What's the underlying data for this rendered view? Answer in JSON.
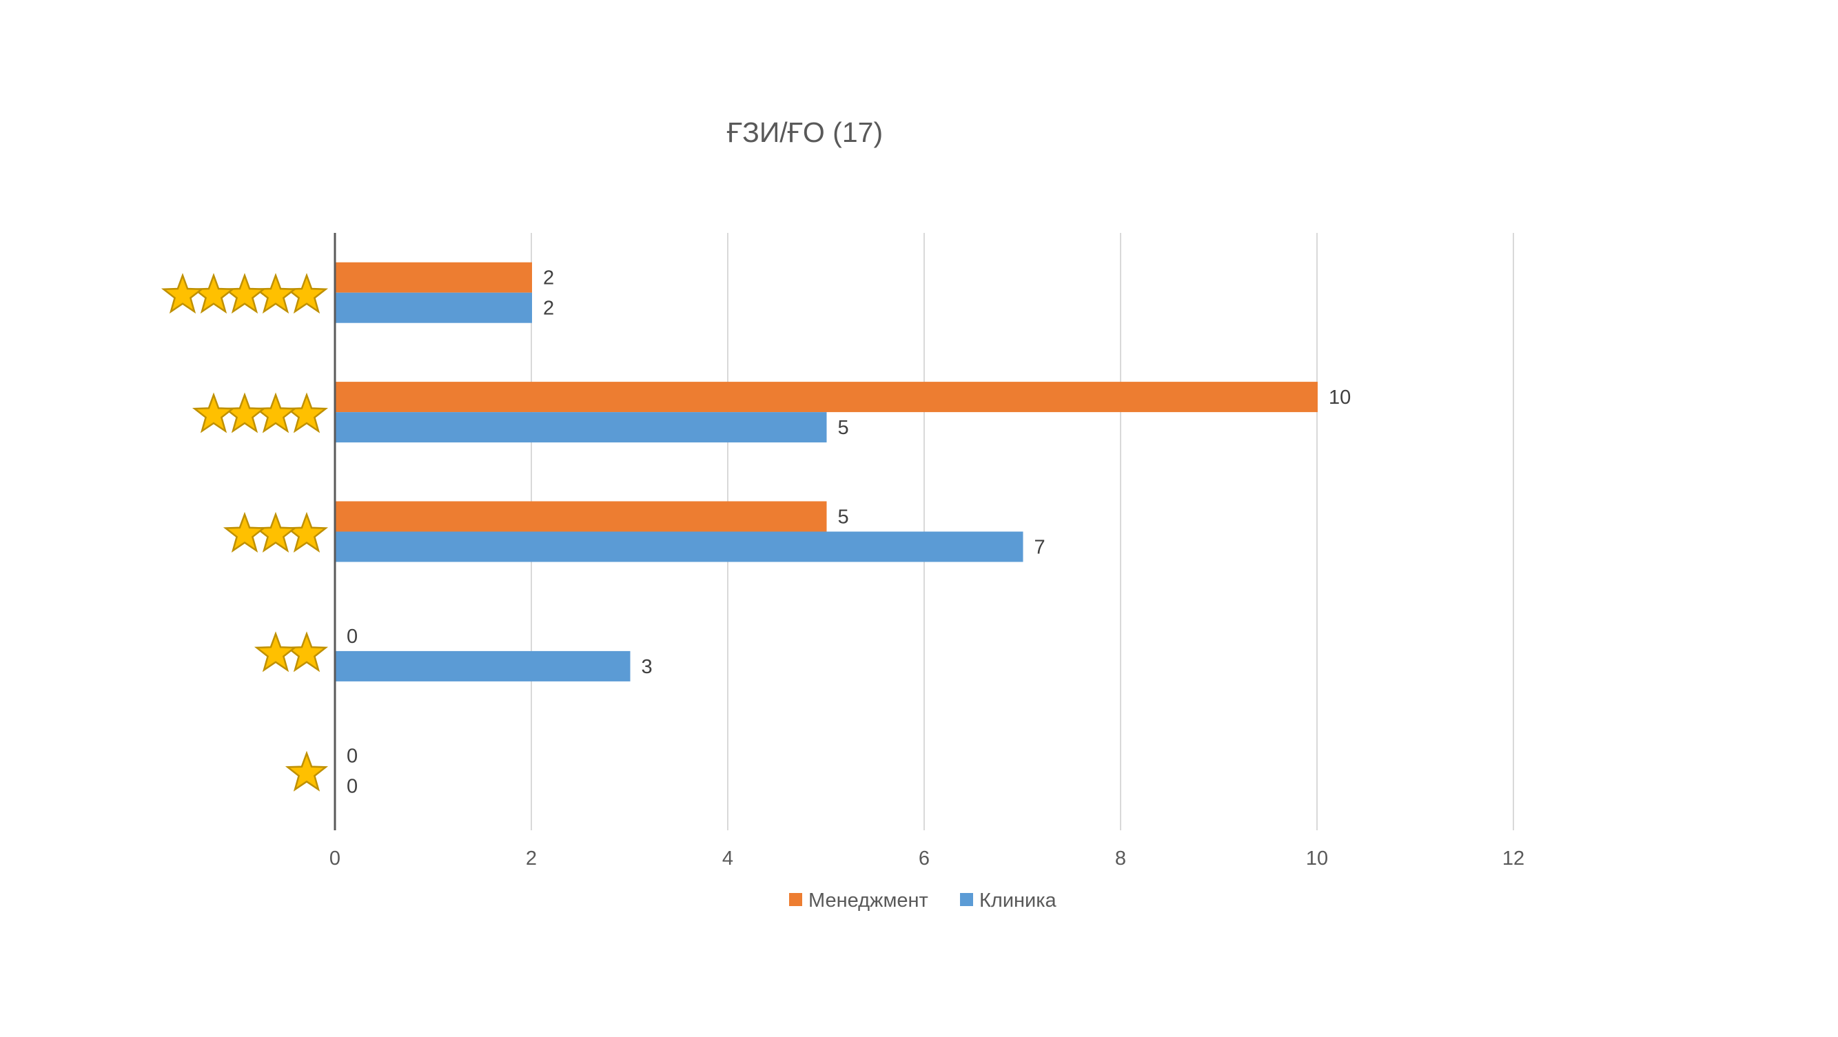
{
  "chart_data": {
    "type": "bar",
    "orientation": "horizontal",
    "title": "ҒЗИ/ҒО (17)",
    "categories": [
      "★★★★★",
      "★★★★",
      "★★★",
      "★★",
      "★"
    ],
    "category_star_counts": [
      5,
      4,
      3,
      2,
      1
    ],
    "series": [
      {
        "name": "Менеджмент",
        "color": "#ED7D31",
        "values": [
          2,
          10,
          5,
          0,
          0
        ]
      },
      {
        "name": "Клиника",
        "color": "#5B9BD5",
        "values": [
          2,
          5,
          7,
          3,
          0
        ]
      }
    ],
    "x_ticks": [
      "0",
      "2",
      "4",
      "6",
      "8",
      "10",
      "12"
    ],
    "xlim": [
      0,
      12
    ],
    "grid": "vertical",
    "legend": "bottom",
    "data_labels": true,
    "star_color": "#FFC000",
    "star_outline": "#BF9000"
  }
}
